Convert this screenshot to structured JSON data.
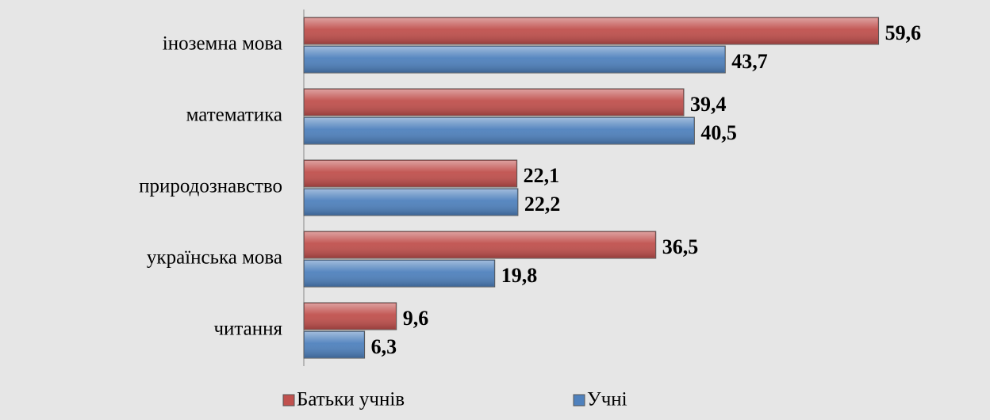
{
  "chart_data": {
    "type": "bar",
    "orientation": "horizontal",
    "categories": [
      "іноземна мова",
      "математика",
      "природознавство",
      "українська мова",
      "читання"
    ],
    "series": [
      {
        "name": "Батьки учнів",
        "color": "#c0504d",
        "values": [
          59.6,
          39.4,
          22.1,
          36.5,
          9.6
        ],
        "value_labels": [
          "59,6",
          "39,4",
          "22,1",
          "36,5",
          "9,6"
        ]
      },
      {
        "name": "Учні",
        "color": "#4f81bd",
        "values": [
          43.7,
          40.5,
          22.2,
          19.8,
          6.3
        ],
        "value_labels": [
          "43,7",
          "40,5",
          "22,2",
          "19,8",
          "6,3"
        ]
      }
    ],
    "xlim": [
      0,
      70
    ],
    "legend": "bottom"
  }
}
